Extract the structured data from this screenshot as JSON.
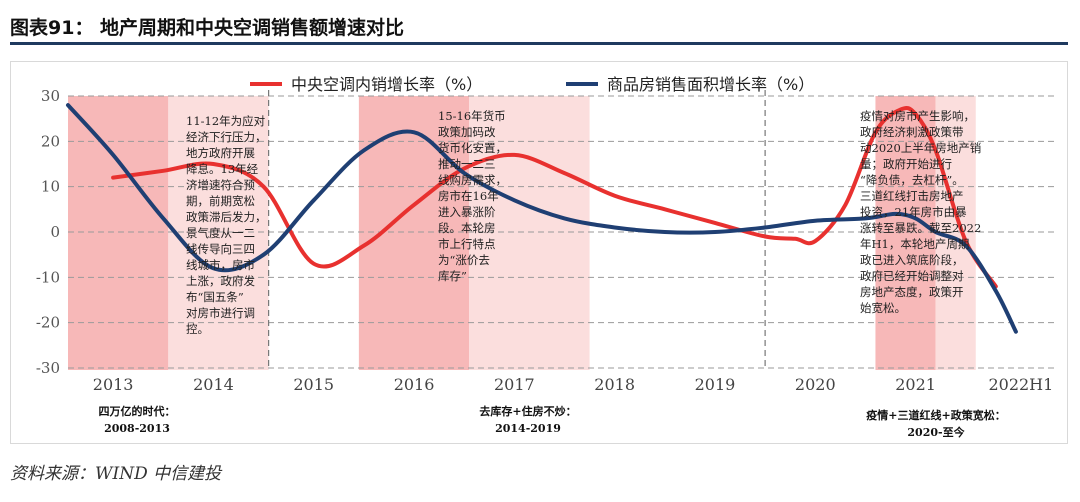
{
  "figure": {
    "title": "图表91：  地产周期和中央空调销售额增速对比",
    "source": "资料来源：WIND   中信建投"
  },
  "colors": {
    "red_series": "#e8312f",
    "blue_series": "#1f3f73",
    "shade": "#f7b8b8",
    "shade_light": "#fbdedd",
    "rule": "#1f3a5f"
  },
  "chart_data": {
    "type": "line",
    "title": "地产周期和中央空调销售额增速对比",
    "xlabel": "",
    "ylabel": "",
    "ylim": [
      -30,
      30
    ],
    "yticks": [
      30,
      20,
      10,
      0,
      -10,
      -20,
      -30
    ],
    "categories": [
      "2013",
      "2014",
      "2015",
      "2016",
      "2017",
      "2018",
      "2019",
      "2020",
      "2021",
      "2022H1"
    ],
    "x_range": [
      2012.55,
      2022.4
    ],
    "series": [
      {
        "name": "中央空调内销增长率（%）",
        "color": "#e8312f",
        "x": [
          2013.0,
          2013.5,
          2014.0,
          2014.5,
          2015.0,
          2015.5,
          2016.0,
          2016.5,
          2017.0,
          2017.5,
          2018.0,
          2018.5,
          2019.0,
          2019.5,
          2019.8,
          2020.0,
          2020.3,
          2020.6,
          2020.85,
          2021.0,
          2021.2,
          2021.5,
          2021.8
        ],
        "values": [
          12,
          13.5,
          15,
          10,
          -7,
          -3,
          6,
          14,
          17,
          13,
          8,
          5,
          2,
          -1,
          -1.5,
          -2,
          6,
          22,
          27,
          26,
          18,
          -2,
          -12
        ]
      },
      {
        "name": "商品房销售面积增长率（%）",
        "color": "#1f3f73",
        "x": [
          2012.55,
          2013.0,
          2013.5,
          2014.0,
          2014.5,
          2015.0,
          2015.5,
          2016.0,
          2016.5,
          2017.0,
          2017.5,
          2018.0,
          2018.5,
          2019.0,
          2019.5,
          2020.0,
          2020.5,
          2020.8,
          2021.0,
          2021.2,
          2021.5,
          2021.8,
          2022.0
        ],
        "values": [
          28,
          17,
          3,
          -8,
          -5,
          7,
          18,
          22,
          13,
          7,
          3,
          1,
          0,
          0,
          1,
          2.5,
          3,
          4,
          3,
          0,
          -3,
          -13,
          -22
        ]
      }
    ],
    "shaded_periods": [
      {
        "from": 2012.55,
        "to": 2013.55,
        "tone": "dark"
      },
      {
        "from": 2013.55,
        "to": 2014.55,
        "tone": "light"
      },
      {
        "from": 2015.45,
        "to": 2016.55,
        "tone": "dark"
      },
      {
        "from": 2016.55,
        "to": 2017.75,
        "tone": "light"
      },
      {
        "from": 2020.6,
        "to": 2021.2,
        "tone": "dark"
      },
      {
        "from": 2021.2,
        "to": 2021.6,
        "tone": "light"
      }
    ],
    "era_labels": [
      {
        "line1": "四万亿的时代：",
        "line2": "2008-2013"
      },
      {
        "line1": "去库存+住房不炒：",
        "line2": "2014-2019"
      },
      {
        "line1": "疫情+三道红线+政策宽松：",
        "line2": "2020-至今"
      }
    ],
    "annotations": [
      {
        "text": "11-12年为应对\n经济下行压力，\n地方政府开展\n降息。13年经\n济增速符合预\n期，前期宽松\n政策滞后发力，\n景气度从一二\n线传导向三四\n线城市，房市\n上涨，政府发\n布“国五条”\n对房市进行调\n控。"
      },
      {
        "text": "15-16年货币\n政策加码改\n货币化安置，\n推动一二三\n线购房需求，\n房市在16年\n进入暴涨阶\n段。本轮房\n市上行特点\n为“涨价去\n库存”"
      },
      {
        "text": "疫情对房市产生影响，\n政府经济刺激政策带\n动2020上半年房地产销\n量；政府开始进行\n“降负债，去杠杆”。\n三道红线打击房地产\n投资，21年房市由暴\n涨转至暴跌。截至2022\n年H1，本轮地产周期\n政已进入筑底阶段，\n政府已经开始调整对\n房地产态度，政策开\n始宽松。"
      }
    ]
  }
}
